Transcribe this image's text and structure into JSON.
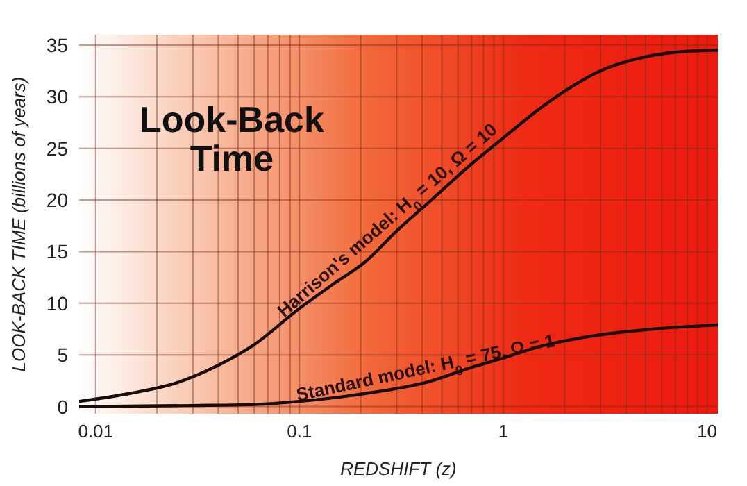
{
  "chart_data": {
    "type": "line",
    "title": "Look-Back Time",
    "xlabel": "REDSHIFT  (z)",
    "ylabel": "LOOK-BACK TIME  (billions of years)",
    "log": "x",
    "grid": true,
    "marker": "none",
    "line_style": "solid",
    "xlim": [
      0.0083,
      11.3
    ],
    "ylim": [
      -0.7,
      36
    ],
    "xticks": [
      0.01,
      {
        "value": 0.02,
        "label": null
      },
      {
        "value": 0.03,
        "label": null
      },
      {
        "value": 0.04,
        "label": null
      },
      {
        "value": 0.05,
        "label": null
      },
      {
        "value": 0.06,
        "label": null
      },
      {
        "value": 0.07,
        "label": null
      },
      {
        "value": 0.08,
        "label": null
      },
      {
        "value": 0.09,
        "label": null
      },
      0.1,
      {
        "value": 0.2,
        "label": null
      },
      {
        "value": 0.3,
        "label": null
      },
      {
        "value": 0.4,
        "label": null
      },
      {
        "value": 0.5,
        "label": null
      },
      {
        "value": 0.6,
        "label": null
      },
      {
        "value": 0.7,
        "label": null
      },
      {
        "value": 0.8,
        "label": null
      },
      {
        "value": 0.9,
        "label": null
      },
      1,
      {
        "value": 2,
        "label": null
      },
      {
        "value": 3,
        "label": null
      },
      {
        "value": 4,
        "label": null
      },
      {
        "value": 5,
        "label": null
      },
      {
        "value": 6,
        "label": null
      },
      {
        "value": 7,
        "label": null
      },
      {
        "value": 8,
        "label": null
      },
      {
        "value": 9,
        "label": null
      },
      10
    ],
    "yticks": [
      0,
      5,
      10,
      15,
      20,
      25,
      30,
      35
    ],
    "series": [
      {
        "name": "Harrison's model: H$_{0}$ = 10, Ω = 10",
        "color": "#1a0a08",
        "x": [
          0.0083,
          0.015,
          0.025,
          0.04,
          0.06,
          0.1,
          0.15,
          0.21,
          0.3,
          0.45,
          0.7,
          1,
          1.5,
          2.1,
          3,
          4.4,
          7,
          11.3
        ],
        "values": [
          0.5,
          1.3,
          2.3,
          4,
          6,
          9.5,
          12,
          14,
          17,
          20.1,
          23.5,
          26,
          28.8,
          30.8,
          32.5,
          33.6,
          34.3,
          34.5
        ]
      },
      {
        "name": "Standard model: H$_{0}$ = 75, Ω = 1",
        "color": "#1a0a08",
        "x": [
          0.0083,
          0.03,
          0.06,
          0.1,
          0.2,
          0.43,
          0.7,
          1,
          1.5,
          2.5,
          5.4,
          11.3
        ],
        "values": [
          0,
          0.1,
          0.2,
          0.5,
          1.2,
          2.4,
          3.8,
          4.7,
          5.8,
          6.7,
          7.5,
          7.9
        ]
      }
    ]
  }
}
